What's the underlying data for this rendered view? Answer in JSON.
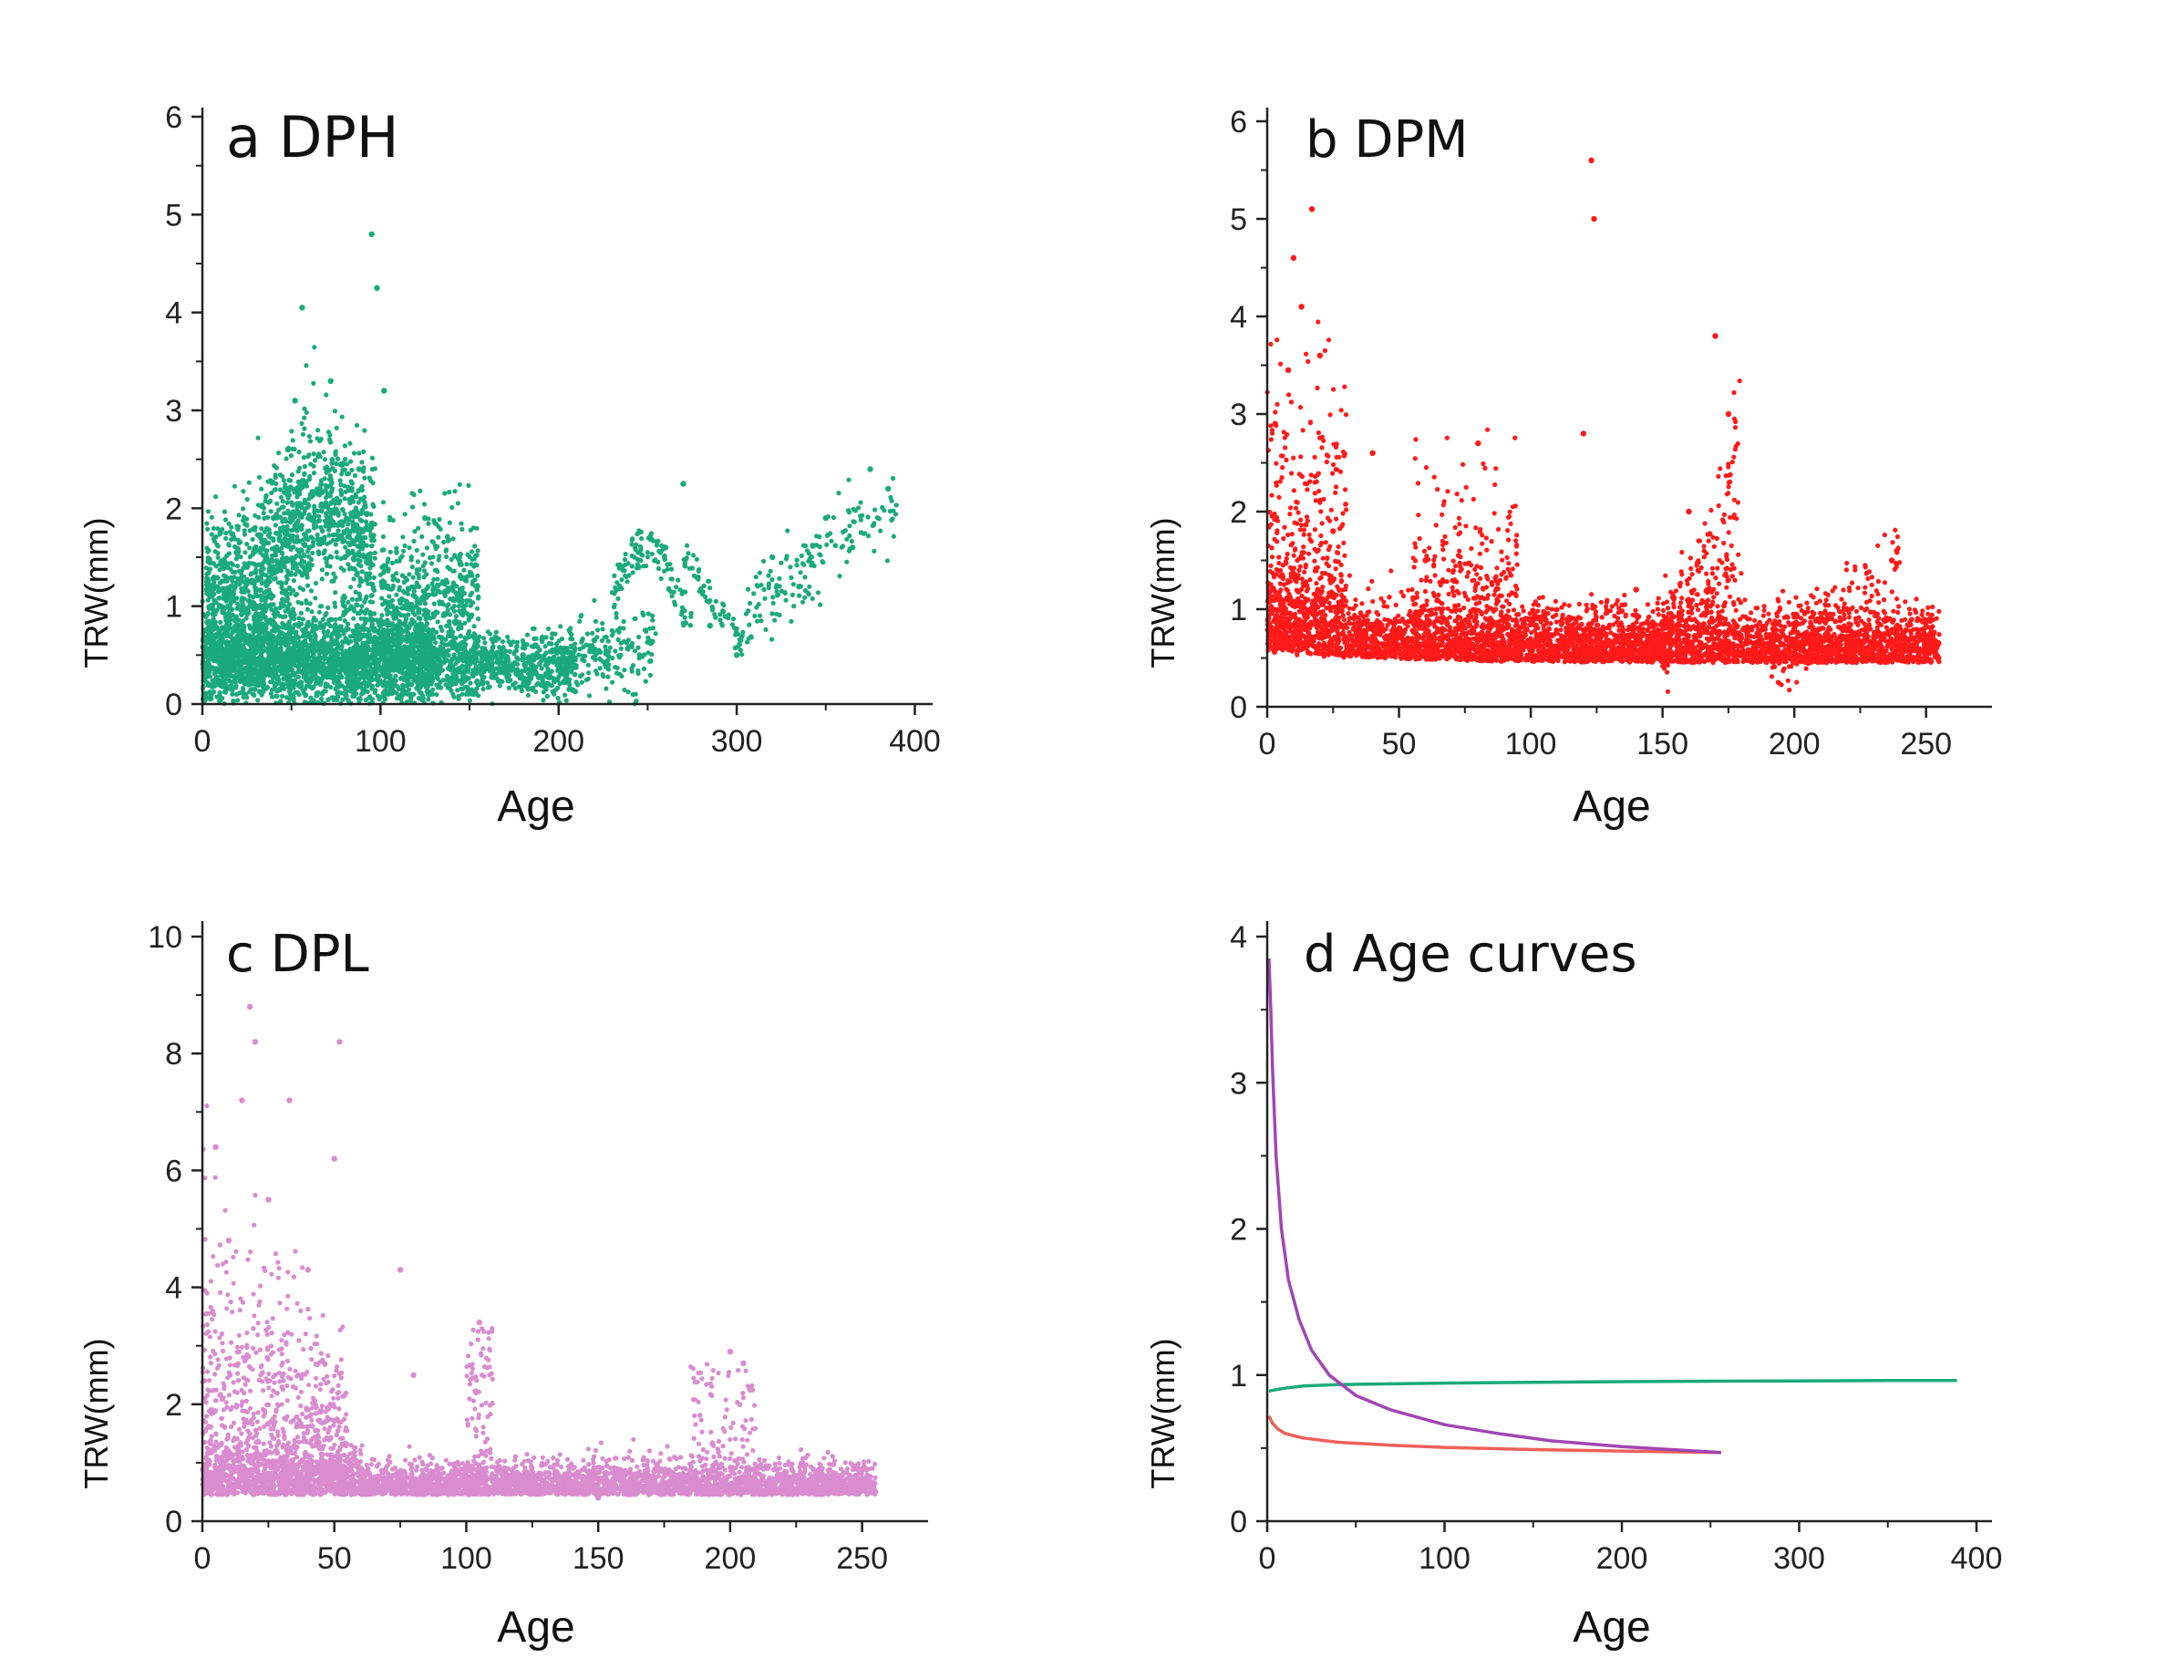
{
  "chart_data": [
    {
      "type": "scatter",
      "panel_title": "a DPH",
      "xlabel": "Age",
      "ylabel": "TRW(mm)",
      "xlim": [
        0,
        410
      ],
      "ylim": [
        0,
        6
      ],
      "xticks": [
        0,
        100,
        200,
        300,
        400
      ],
      "yticks": [
        0,
        1,
        2,
        3,
        4,
        5,
        6
      ],
      "color": "#1aaa7b",
      "series": [
        {
          "name": "DPH",
          "values": [
            [
              10,
              0.42
            ],
            [
              18,
              0.75
            ],
            [
              25,
              1.4
            ],
            [
              32,
              0.55
            ],
            [
              40,
              1.9
            ],
            [
              48,
              2.6
            ],
            [
              52,
              3.1
            ],
            [
              56,
              4.05
            ],
            [
              60,
              1.6
            ],
            [
              66,
              2.2
            ],
            [
              72,
              3.3
            ],
            [
              80,
              1.5
            ],
            [
              88,
              2.4
            ],
            [
              95,
              4.8
            ],
            [
              98,
              4.25
            ],
            [
              102,
              3.2
            ],
            [
              110,
              0.5
            ],
            [
              125,
              1.9
            ],
            [
              140,
              0.7
            ],
            [
              160,
              0.45
            ],
            [
              180,
              0.5
            ],
            [
              200,
              0.4
            ],
            [
              220,
              0.65
            ],
            [
              245,
              1.4
            ],
            [
              260,
              1.6
            ],
            [
              270,
              2.25
            ],
            [
              285,
              0.8
            ],
            [
              300,
              0.5
            ],
            [
              320,
              1.5
            ],
            [
              335,
              1.2
            ],
            [
              350,
              1.9
            ],
            [
              365,
              1.6
            ],
            [
              375,
              2.4
            ],
            [
              385,
              2.2
            ]
          ]
        }
      ]
    },
    {
      "type": "scatter",
      "panel_title": "b DPM",
      "xlabel": "Age",
      "ylabel": "TRW(mm)",
      "xlim": [
        0,
        275
      ],
      "ylim": [
        0,
        6
      ],
      "xticks": [
        0,
        50,
        100,
        150,
        200,
        250
      ],
      "yticks": [
        0,
        1,
        2,
        3,
        4,
        5,
        6
      ],
      "color": "#ff1a1a",
      "series": [
        {
          "name": "DPM",
          "values": [
            [
              3,
              2.9
            ],
            [
              8,
              3.45
            ],
            [
              10,
              4.6
            ],
            [
              13,
              4.1
            ],
            [
              17,
              5.1
            ],
            [
              20,
              3.6
            ],
            [
              25,
              1.8
            ],
            [
              40,
              2.6
            ],
            [
              60,
              1.5
            ],
            [
              80,
              2.7
            ],
            [
              100,
              0.9
            ],
            [
              120,
              2.8
            ],
            [
              123,
              5.6
            ],
            [
              124,
              5.0
            ],
            [
              140,
              1.2
            ],
            [
              160,
              2.0
            ],
            [
              170,
              3.8
            ],
            [
              175,
              3.0
            ],
            [
              200,
              0.8
            ],
            [
              220,
              1.0
            ],
            [
              237,
              1.5
            ],
            [
              250,
              0.5
            ]
          ]
        }
      ]
    },
    {
      "type": "scatter",
      "panel_title": "c DPL",
      "xlabel": "Age",
      "ylabel": "TRW(mm)",
      "xlim": [
        0,
        275
      ],
      "ylim": [
        0,
        10
      ],
      "xticks": [
        0,
        50,
        100,
        150,
        200,
        250
      ],
      "yticks": [
        0,
        2,
        4,
        6,
        8,
        10
      ],
      "color": "#d98ccf",
      "series": [
        {
          "name": "DPL",
          "values": [
            [
              5,
              6.4
            ],
            [
              10,
              4.8
            ],
            [
              15,
              7.2
            ],
            [
              18,
              8.8
            ],
            [
              20,
              8.2
            ],
            [
              25,
              5.5
            ],
            [
              33,
              7.2
            ],
            [
              40,
              4.3
            ],
            [
              50,
              6.2
            ],
            [
              52,
              8.2
            ],
            [
              75,
              4.3
            ],
            [
              80,
              2.5
            ],
            [
              105,
              3.4
            ],
            [
              120,
              0.8
            ],
            [
              150,
              0.4
            ],
            [
              180,
              0.7
            ],
            [
              200,
              2.9
            ],
            [
              205,
              2.7
            ],
            [
              230,
              0.55
            ],
            [
              255,
              0.5
            ]
          ]
        }
      ]
    },
    {
      "type": "line",
      "panel_title": "d Age curves",
      "xlabel": "Age",
      "ylabel": "TRW(mm)",
      "xlim": [
        0,
        400
      ],
      "ylim": [
        0,
        4
      ],
      "xticks": [
        0,
        100,
        200,
        300,
        400
      ],
      "yticks": [
        0,
        1,
        2,
        3,
        4
      ],
      "series": [
        {
          "name": "DPH",
          "color": "#1aaa7b",
          "x": [
            1,
            5,
            10,
            20,
            40,
            70,
            100,
            150,
            200,
            250,
            300,
            350,
            389
          ],
          "values": [
            0.89,
            0.9,
            0.91,
            0.925,
            0.935,
            0.94,
            0.945,
            0.95,
            0.955,
            0.958,
            0.96,
            0.962,
            0.963
          ]
        },
        {
          "name": "DPM",
          "color": "#f0605a",
          "x": [
            1,
            3,
            6,
            10,
            20,
            40,
            70,
            100,
            150,
            200,
            256
          ],
          "values": [
            0.72,
            0.67,
            0.63,
            0.6,
            0.57,
            0.54,
            0.52,
            0.505,
            0.49,
            0.48,
            0.47
          ]
        },
        {
          "name": "DPL",
          "color": "#a046b4",
          "x": [
            1,
            2,
            3,
            5,
            8,
            12,
            18,
            25,
            35,
            50,
            70,
            100,
            130,
            160,
            200,
            256
          ],
          "values": [
            3.85,
            3.5,
            3.1,
            2.5,
            2.0,
            1.65,
            1.38,
            1.17,
            1.0,
            0.86,
            0.76,
            0.66,
            0.6,
            0.55,
            0.51,
            0.47
          ]
        }
      ]
    }
  ]
}
